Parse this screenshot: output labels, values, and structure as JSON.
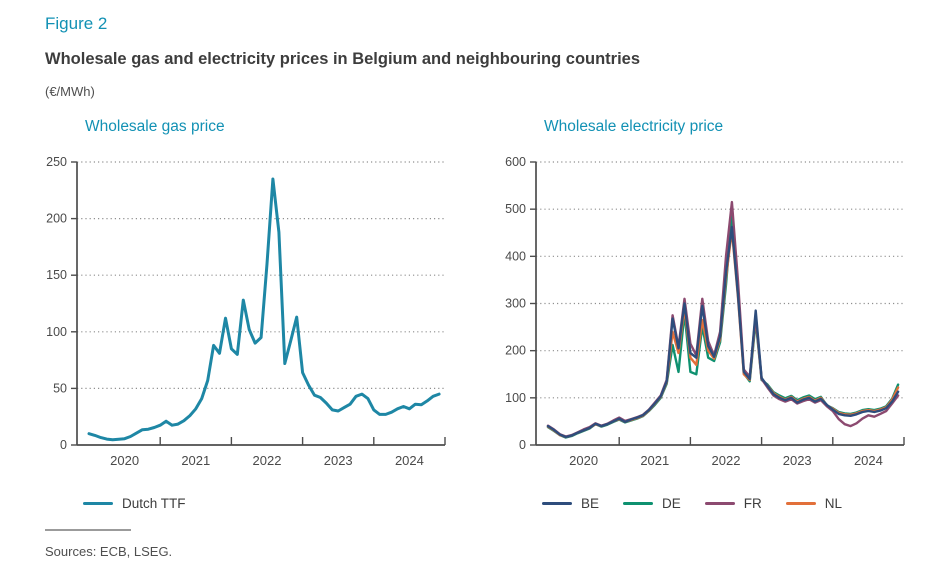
{
  "figure": {
    "label": "Figure 2",
    "title": "Wholesale gas and electricity prices in Belgium and neighbouring countries",
    "unit": "(€/MWh)",
    "sources": "Sources: ECB, LSEG."
  },
  "colors": {
    "accent": "#1291b4",
    "gas_line": "#1e87a5",
    "be": "#2e4d7c",
    "de": "#0e9170",
    "fr": "#8c4a70",
    "nl": "#e2703a",
    "axis": "#4d4d4d",
    "grid": "#8f8f8f",
    "text": "#4a4a4a"
  },
  "chart_data": [
    {
      "type": "line",
      "title": "Wholesale gas price",
      "x": {
        "start": "2020-01",
        "end": "2024-12",
        "frequency": "monthly"
      },
      "x_tick_labels": [
        "2020",
        "2021",
        "2022",
        "2023",
        "2024"
      ],
      "ylim": [
        0,
        250
      ],
      "yticks": [
        0,
        50,
        100,
        150,
        200,
        250
      ],
      "grid": "dotted-horizontal",
      "legend_position": "bottom",
      "series": [
        {
          "name": "Dutch TTF",
          "color": "#1e87a5",
          "z": 1,
          "values": [
            10,
            8.5,
            6.5,
            5.2,
            4.6,
            5.0,
            5.6,
            7.5,
            10.5,
            13.5,
            14,
            15.5,
            17.5,
            21,
            17.5,
            18.5,
            21.5,
            26,
            32,
            41,
            57,
            88,
            81,
            112,
            85,
            80,
            128,
            102,
            90,
            95,
            160,
            235,
            188,
            72,
            92,
            113,
            64,
            53,
            44,
            42,
            37,
            31,
            30,
            33,
            36,
            43,
            45,
            41,
            31,
            27,
            27,
            29,
            32,
            34,
            32,
            36,
            35.5,
            39,
            43,
            45
          ]
        }
      ]
    },
    {
      "type": "line",
      "title": "Wholesale electricity price",
      "x": {
        "start": "2020-01",
        "end": "2024-12",
        "frequency": "monthly"
      },
      "x_tick_labels": [
        "2020",
        "2021",
        "2022",
        "2023",
        "2024"
      ],
      "ylim": [
        0,
        600
      ],
      "yticks": [
        0,
        100,
        200,
        300,
        400,
        500,
        600
      ],
      "grid": "dotted-horizontal",
      "legend_position": "bottom",
      "series": [
        {
          "name": "BE",
          "color": "#2e4d7c",
          "z": 4,
          "values": [
            40,
            32,
            22,
            17,
            20,
            26,
            31,
            36,
            45,
            40,
            44,
            50,
            56,
            49,
            54,
            58,
            63,
            74,
            88,
            103,
            135,
            268,
            205,
            300,
            195,
            185,
            295,
            210,
            187,
            230,
            365,
            462,
            320,
            155,
            140,
            285,
            142,
            125,
            108,
            100,
            95,
            100,
            90,
            96,
            100,
            92,
            98,
            85,
            75,
            66,
            63,
            62,
            65,
            70,
            72,
            70,
            73,
            78,
            92,
            113
          ]
        },
        {
          "name": "DE",
          "color": "#0e9170",
          "z": 1,
          "values": [
            38,
            30,
            21,
            16,
            19,
            25,
            30,
            35,
            44,
            39,
            43,
            49,
            54,
            48,
            52,
            56,
            61,
            72,
            85,
            100,
            130,
            212,
            155,
            280,
            155,
            150,
            252,
            185,
            178,
            218,
            340,
            490,
            335,
            152,
            135,
            263,
            138,
            128,
            112,
            105,
            99,
            104,
            95,
            101,
            105,
            97,
            102,
            84,
            78,
            70,
            67,
            66,
            69,
            74,
            76,
            74,
            77,
            82,
            98,
            128
          ]
        },
        {
          "name": "FR",
          "color": "#8c4a70",
          "z": 3,
          "values": [
            41,
            33,
            23,
            18,
            21,
            27,
            33,
            38,
            46,
            41,
            45,
            52,
            58,
            51,
            55,
            59,
            64,
            75,
            90,
            105,
            138,
            275,
            208,
            310,
            215,
            190,
            310,
            220,
            190,
            240,
            400,
            515,
            350,
            160,
            145,
            275,
            140,
            122,
            105,
            97,
            92,
            97,
            88,
            93,
            97,
            90,
            95,
            82,
            72,
            55,
            44,
            40,
            46,
            56,
            63,
            60,
            66,
            72,
            88,
            105
          ]
        },
        {
          "name": "NL",
          "color": "#e2703a",
          "z": 2,
          "values": [
            39,
            31,
            21,
            17,
            20,
            26,
            31,
            36,
            44,
            40,
            44,
            50,
            55,
            49,
            53,
            57,
            62,
            73,
            87,
            102,
            133,
            240,
            195,
            290,
            185,
            170,
            265,
            200,
            183,
            225,
            355,
            455,
            315,
            150,
            138,
            272,
            140,
            126,
            110,
            102,
            96,
            102,
            92,
            98,
            102,
            94,
            100,
            84,
            77,
            68,
            65,
            64,
            67,
            72,
            74,
            72,
            75,
            80,
            96,
            122
          ]
        }
      ]
    }
  ]
}
